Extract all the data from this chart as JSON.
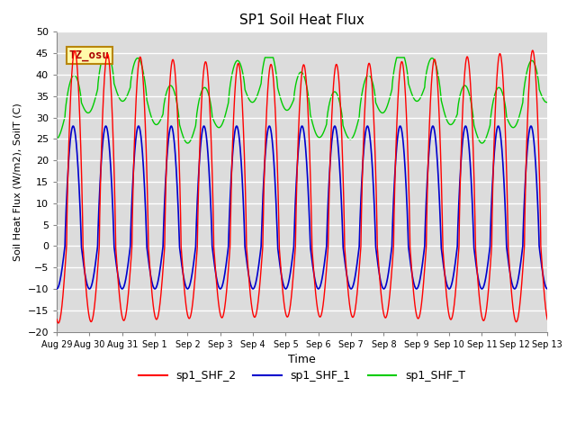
{
  "title": "SP1 Soil Heat Flux",
  "xlabel": "Time",
  "ylabel": "Soil Heat Flux (W/m2), SoilT (C)",
  "ylim": [
    -20,
    50
  ],
  "yticks": [
    -20,
    -15,
    -10,
    -5,
    0,
    5,
    10,
    15,
    20,
    25,
    30,
    35,
    40,
    45,
    50
  ],
  "xtick_labels": [
    "Aug 29",
    "Aug 30",
    "Aug 31",
    "Sep 1",
    "Sep 2",
    "Sep 3",
    "Sep 4",
    "Sep 5",
    "Sep 6",
    "Sep 7",
    "Sep 8",
    "Sep 9",
    "Sep 10",
    "Sep 11",
    "Sep 12",
    "Sep 13"
  ],
  "color_red": "#FF0000",
  "color_blue": "#0000CD",
  "color_green": "#00CC00",
  "bg_color": "#DCDCDC",
  "legend_labels": [
    "sp1_SHF_2",
    "sp1_SHF_1",
    "sp1_SHF_T"
  ],
  "tz_label": "TZ_osu",
  "annotation_bg": "#FFFAAA",
  "annotation_border": "#B8860B"
}
